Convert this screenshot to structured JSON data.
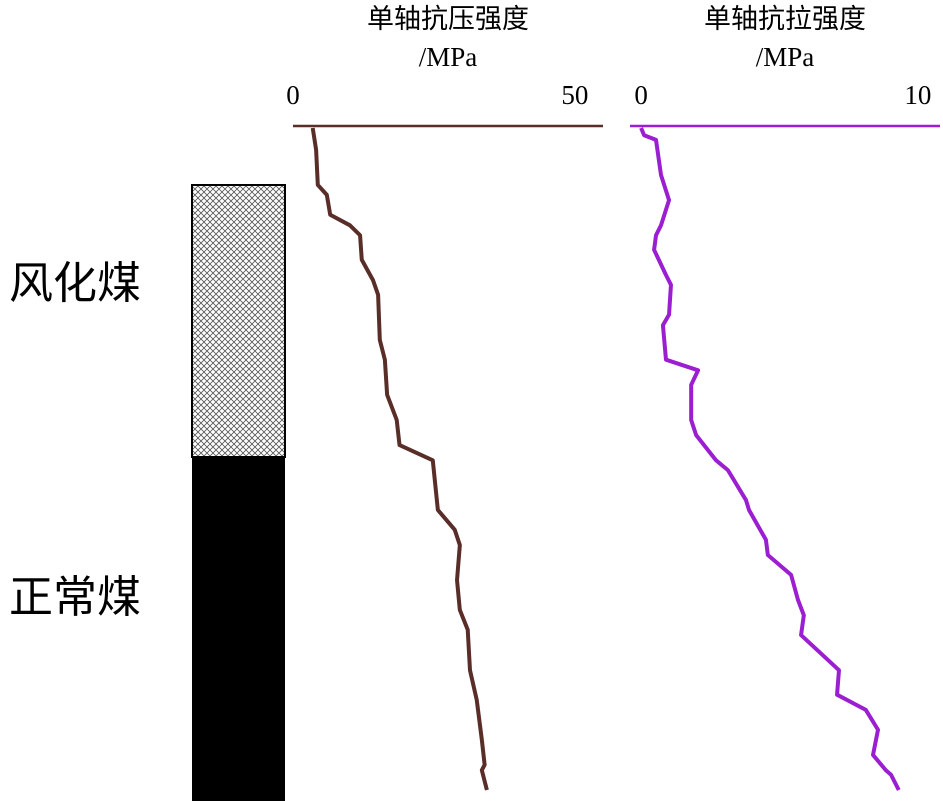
{
  "column": {
    "labels": [
      "风化煤",
      "正常煤"
    ]
  },
  "chart_data": [
    {
      "type": "line",
      "title": "单轴抗压强度",
      "unit": "/MPa",
      "color": "#5a2e28",
      "xlim": [
        0,
        55
      ],
      "xticks": [
        0,
        50
      ],
      "ylim": [
        0,
        100
      ],
      "inverted_depth": true,
      "depth": [
        0,
        3.3,
        8.6,
        10.1,
        13.1,
        14.7,
        16.2,
        19.9,
        23,
        25.2,
        32,
        35,
        40.3,
        44.1,
        47.9,
        50.2,
        57.7,
        60.7,
        63,
        68.3,
        72.8,
        75.8,
        81.9,
        86.4,
        92.4,
        96.2,
        97,
        100
      ],
      "values": [
        3.5,
        4.1,
        4.4,
        6.0,
        6.6,
        10.1,
        11.9,
        12.2,
        14.2,
        15.1,
        15.4,
        16.3,
        16.7,
        18.4,
        18.9,
        24.8,
        25.7,
        28.7,
        29.6,
        29.1,
        29.6,
        31.0,
        31.4,
        32.6,
        33.5,
        34.0,
        33.5,
        34.4
      ]
    },
    {
      "type": "line",
      "title": "单轴抗拉强度",
      "unit": "/MPa",
      "color": "#9b1fd1",
      "xlim": [
        -0.4,
        10.8
      ],
      "xticks": [
        0,
        10
      ],
      "ylim": [
        0,
        100
      ],
      "inverted_depth": true,
      "depth": [
        0,
        1.1,
        1.8,
        7.1,
        10.9,
        14.7,
        16.2,
        18.4,
        22.2,
        23.7,
        28.2,
        29.8,
        35,
        36.6,
        38.8,
        44.1,
        46.4,
        50.2,
        51.7,
        56.2,
        57.7,
        62.2,
        64.5,
        67.5,
        71.3,
        73.6,
        76.6,
        81.9,
        85.6,
        87.9,
        90.9,
        94.7,
        97,
        97.7,
        100
      ],
      "values": [
        0,
        0.11,
        0.54,
        0.72,
        1.01,
        0.72,
        0.54,
        0.47,
        0.9,
        1.08,
        1.01,
        0.79,
        0.9,
        2.06,
        1.81,
        1.81,
        1.99,
        2.71,
        3.14,
        3.79,
        3.9,
        4.51,
        4.58,
        5.42,
        5.67,
        5.88,
        5.78,
        7.15,
        7.08,
        8.12,
        8.56,
        8.38,
        8.84,
        9.03,
        9.31
      ]
    }
  ]
}
